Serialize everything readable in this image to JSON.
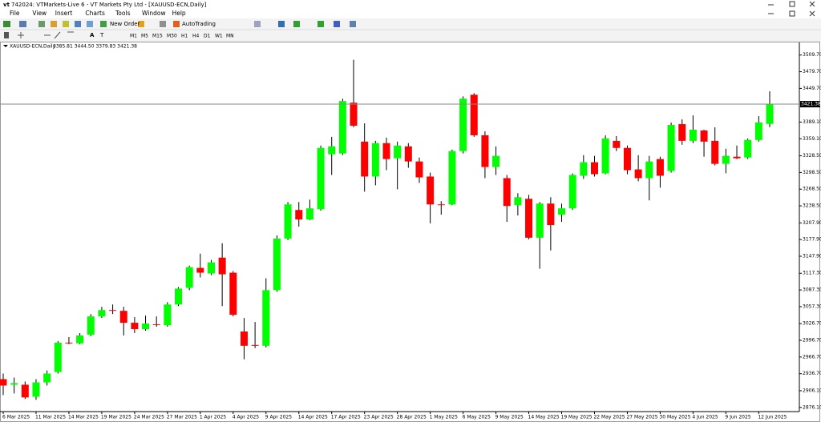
{
  "window": {
    "title": "742024: VTMarkets-Live 6 - VT Markets Pty Ltd - [XAUUSD-ECN,Daily]"
  },
  "menu": [
    "File",
    "View",
    "Insert",
    "Charts",
    "Tools",
    "Window",
    "Help"
  ],
  "toolbar": {
    "new_order": "New Order",
    "autotrading": "AutoTrading",
    "timeframes": [
      "M1",
      "M5",
      "M15",
      "M30",
      "H1",
      "H4",
      "D1",
      "W1",
      "MN"
    ]
  },
  "chart_data": {
    "type": "candlestick",
    "title": "XAUUSD-ECN,Daily",
    "info": "3385.81 3444.50 3379.83 3421.38",
    "categories": [
      "6 Mar 2025",
      null,
      null,
      "11 Mar 2025",
      null,
      null,
      "14 Mar 2025",
      null,
      null,
      "19 Mar 2025",
      null,
      null,
      "24 Mar 2025",
      null,
      null,
      "27 Mar 2025",
      null,
      null,
      "1 Apr 2025",
      null,
      null,
      "4 Apr 2025",
      null,
      null,
      "9 Apr 2025",
      null,
      null,
      "14 Apr 2025",
      null,
      null,
      "17 Apr 2025",
      null,
      null,
      "23 Apr 2025",
      null,
      null,
      "28 Apr 2025",
      null,
      null,
      "1 May 2025",
      null,
      null,
      "6 May 2025",
      null,
      null,
      "9 May 2025",
      null,
      null,
      "14 May 2025",
      null,
      null,
      "19 May 2025",
      null,
      null,
      "22 May 2025",
      null,
      null,
      "27 May 2025",
      null,
      null,
      "30 May 2025",
      null,
      null,
      "4 Jun 2025",
      null,
      null,
      "9 Jun 2025",
      null,
      null,
      "12 Jun 2025",
      null
    ],
    "open": [
      2926.9,
      2916.9,
      2916.9,
      2895.4,
      2921.1,
      2939.7,
      2992.6,
      2991.2,
      3006.9,
      3039.7,
      3051.1,
      3049.7,
      3028.3,
      3016.9,
      3025.4,
      3024.0,
      3061.1,
      3091.1,
      3126.9,
      3116.9,
      3145.4,
      3118.3,
      3012.6,
      2988.3,
      2986.9,
      3086.9,
      3179.7,
      3231.1,
      3214.0,
      3232.6,
      3331.2,
      3332.6,
      3424.0,
      3354.0,
      3291.2,
      3351.2,
      3324.0,
      3345.4,
      3318.3,
      3291.2,
      3241.1,
      3241.1,
      3336.9,
      3438.3,
      3365.4,
      3308.3,
      3288.3,
      3239.7,
      3251.2,
      3181.2,
      3242.6,
      3222.6,
      3234.0,
      3292.6,
      3316.9,
      3296.9,
      3355.4,
      3342.6,
      3304.0,
      3288.3,
      3322.6,
      3301.2,
      3385.4,
      3355.4,
      3374.0,
      3355.4,
      3314.0,
      3326.9,
      3325.4,
      3356.9,
      3385.81
    ],
    "high": [
      2936.9,
      2929.7,
      2922.6,
      2926.9,
      2942.6,
      2995.4,
      3002.6,
      3009.7,
      3044.0,
      3056.9,
      3061.1,
      3056.9,
      3038.3,
      3041.1,
      3039.7,
      3065.4,
      3092.6,
      3131.1,
      3152.6,
      3141.2,
      3171.2,
      3121.2,
      3036.9,
      3029.7,
      3108.3,
      3185.4,
      3245.4,
      3245.4,
      3249.7,
      3346.9,
      3362.6,
      3431.2,
      3501.2,
      3386.9,
      3355.4,
      3361.2,
      3354.0,
      3351.2,
      3325.4,
      3298.3,
      3246.9,
      3339.7,
      3435.4,
      3441.2,
      3372.6,
      3345.4,
      3294.0,
      3261.2,
      3258.3,
      3245.4,
      3254.0,
      3242.6,
      3296.9,
      3329.7,
      3328.3,
      3365.4,
      3364.0,
      3346.9,
      3329.7,
      3328.3,
      3326.9,
      3388.3,
      3394.0,
      3401.2,
      3375.4,
      3379.7,
      3341.2,
      3346.9,
      3359.7,
      3399.7,
      3444.5
    ],
    "low": [
      2898.3,
      2901.1,
      2891.1,
      2889.7,
      2915.4,
      2936.9,
      2989.7,
      2989.7,
      3004.0,
      3036.9,
      3044.0,
      3005.4,
      3009.7,
      3014.0,
      3021.1,
      3021.1,
      3058.3,
      3086.9,
      3109.7,
      3114.0,
      3058.3,
      3039.7,
      2962.6,
      2982.6,
      2984.0,
      3084.0,
      3176.9,
      3201.2,
      3212.6,
      3229.7,
      3294.0,
      3329.7,
      3379.7,
      3264.0,
      3275.4,
      3302.6,
      3268.3,
      3306.9,
      3279.7,
      3206.9,
      3222.6,
      3239.7,
      3332.6,
      3362.6,
      3288.3,
      3294.0,
      3209.7,
      3221.2,
      3178.3,
      3125.4,
      3158.3,
      3209.7,
      3231.2,
      3286.9,
      3291.2,
      3295.4,
      3336.9,
      3295.4,
      3282.6,
      3248.3,
      3271.2,
      3298.3,
      3348.3,
      3351.2,
      3326.9,
      3311.2,
      3296.9,
      3322.6,
      3322.6,
      3354.0,
      3379.83
    ],
    "close": [
      2915.4,
      2919.7,
      2894.0,
      2921.1,
      2936.9,
      2992.6,
      2991.2,
      3005.4,
      3039.7,
      3051.1,
      3049.7,
      3028.3,
      3016.9,
      3026.9,
      3024.0,
      3061.1,
      3089.7,
      3128.3,
      3118.3,
      3136.9,
      3115.4,
      3042.6,
      2986.9,
      2986.9,
      3086.9,
      3179.7,
      3241.1,
      3214.0,
      3234.0,
      3342.6,
      3345.4,
      3426.9,
      3382.6,
      3291.2,
      3351.2,
      3322.6,
      3346.9,
      3318.3,
      3289.7,
      3241.1,
      3239.7,
      3336.9,
      3431.2,
      3365.4,
      3308.3,
      3328.3,
      3238.3,
      3254.0,
      3181.2,
      3242.6,
      3204.0,
      3234.0,
      3294.0,
      3316.9,
      3295.4,
      3359.7,
      3342.6,
      3302.6,
      3288.3,
      3318.3,
      3292.6,
      3384.0,
      3355.4,
      3375.4,
      3354.0,
      3314.0,
      3328.3,
      3324.0,
      3356.9,
      3388.3,
      3421.38
    ],
    "up_color": "#00ff00",
    "down_color": "#ff0000",
    "wick_color": "#000000",
    "current_price": 3421.38,
    "ylim": [
      2870,
      3528
    ],
    "yticks": [
      {
        "value": 3509.7,
        "label": "3509.70"
      },
      {
        "value": 3479.7,
        "label": "3479.70"
      },
      {
        "value": 3449.7,
        "label": "3449.70"
      },
      {
        "value": 3389.1,
        "label": "3389.10"
      },
      {
        "value": 3359.1,
        "label": "3359.10"
      },
      {
        "value": 3328.5,
        "label": "3328.50"
      },
      {
        "value": 3298.5,
        "label": "3298.50"
      },
      {
        "value": 3268.5,
        "label": "3268.50"
      },
      {
        "value": 3238.5,
        "label": "3238.50"
      },
      {
        "value": 3207.9,
        "label": "3207.90"
      },
      {
        "value": 3177.9,
        "label": "3177.90"
      },
      {
        "value": 3147.9,
        "label": "3147.90"
      },
      {
        "value": 3117.3,
        "label": "3117.30"
      },
      {
        "value": 3087.3,
        "label": "3087.30"
      },
      {
        "value": 3057.3,
        "label": "3057.30"
      },
      {
        "value": 3026.7,
        "label": "3026.70"
      },
      {
        "value": 2996.7,
        "label": "2996.70"
      },
      {
        "value": 2966.7,
        "label": "2966.70"
      },
      {
        "value": 2936.7,
        "label": "2936.70"
      },
      {
        "value": 2906.1,
        "label": "2906.10"
      },
      {
        "value": 2876.1,
        "label": "2876.10"
      }
    ],
    "grid": false
  }
}
